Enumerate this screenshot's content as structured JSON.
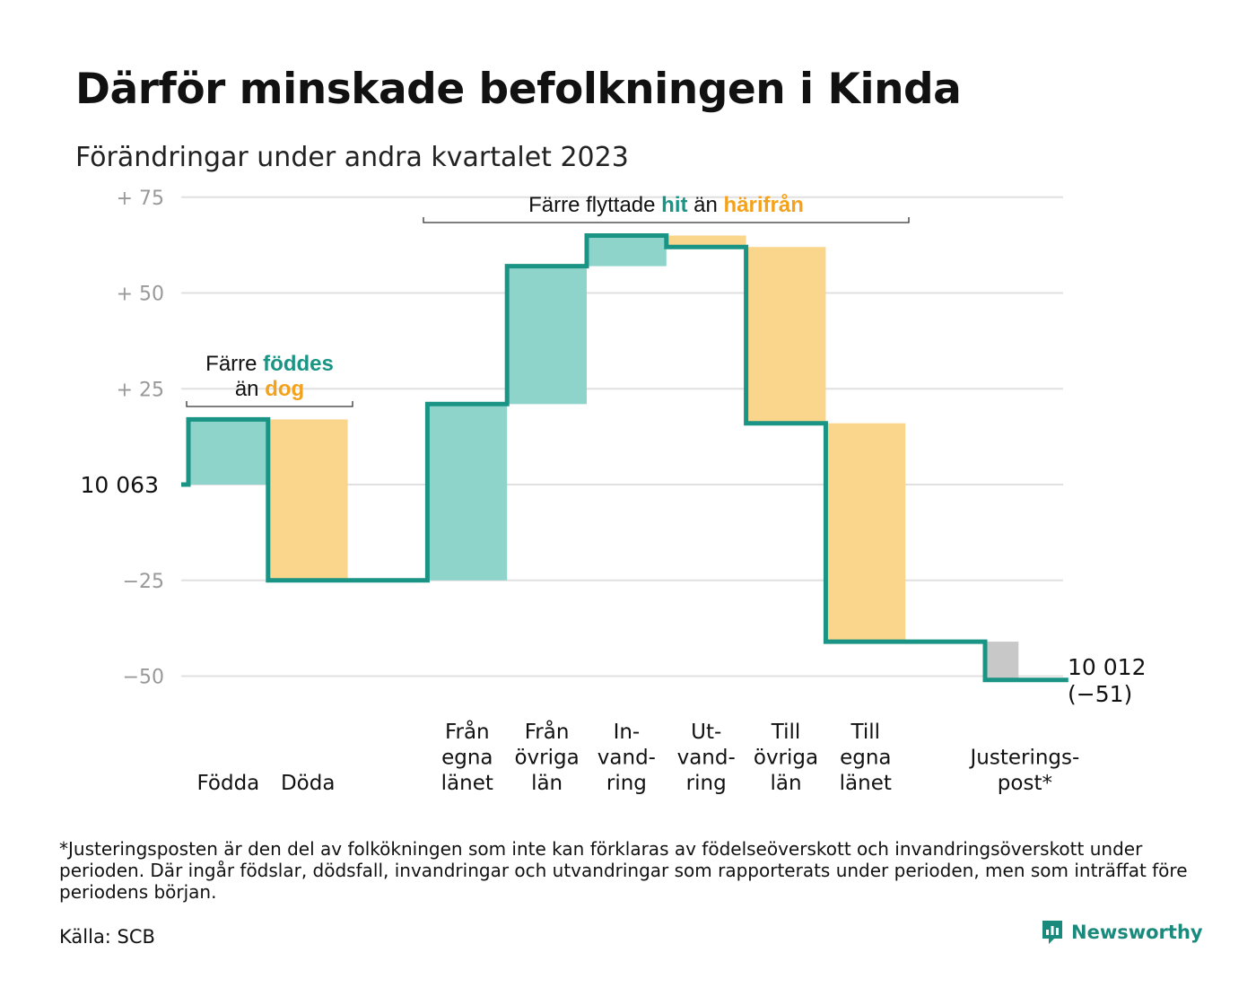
{
  "title": "Därför minskade befolkningen i Kinda",
  "subtitle": "Förändringar under andra kvartalet 2023",
  "footnote": "*Justeringsposten är den del av folkökningen som inte kan förklaras av födelseöverskott och invandringsöverskott under perioden. Där ingår födslar, dödsfall, invandringar och utvandringar som rapporterats under perioden, men som inträffat före periodens början.",
  "source": "Källa: SCB",
  "logo_text": "Newsworthy",
  "colors": {
    "increase": "#8fd4cb",
    "decrease": "#fad58c",
    "adjustment": "#c8c8c8",
    "line": "#1a9484",
    "teal_text": "#1a9484",
    "orange_text": "#f4a21c",
    "grid": "#e0e0e0"
  },
  "chart_data": {
    "type": "waterfall",
    "baseline": 10063,
    "baseline_label": "10  063",
    "y_ticks": [
      {
        "value": 75,
        "label": "+  75"
      },
      {
        "value": 50,
        "label": "+  50"
      },
      {
        "value": 25,
        "label": "+  25"
      },
      {
        "value": 0,
        "label": ""
      },
      {
        "value": -25,
        "label": "−25"
      },
      {
        "value": -50,
        "label": "−50"
      }
    ],
    "ylim": [
      -58,
      78
    ],
    "steps": [
      {
        "key": "fodda",
        "label": [
          "Födda"
        ],
        "change": 17,
        "kind": "increase"
      },
      {
        "key": "doda",
        "label": [
          "Döda"
        ],
        "change": -42,
        "kind": "decrease"
      },
      {
        "key": "gap",
        "label": [],
        "change": 0,
        "kind": "gap"
      },
      {
        "key": "fran-egna-lanet",
        "label": [
          "Från",
          "egna",
          "länet"
        ],
        "change": 46,
        "kind": "increase"
      },
      {
        "key": "fran-ovriga-lan",
        "label": [
          "Från",
          "övriga",
          "län"
        ],
        "change": 36,
        "kind": "increase"
      },
      {
        "key": "invandring",
        "label": [
          "In-",
          "vand-",
          "ring"
        ],
        "change": 8,
        "kind": "increase"
      },
      {
        "key": "utvandring",
        "label": [
          "Ut-",
          "vand-",
          "ring"
        ],
        "change": -3,
        "kind": "decrease"
      },
      {
        "key": "till-ovriga-lan",
        "label": [
          "Till",
          "övriga",
          "län"
        ],
        "change": -46,
        "kind": "decrease"
      },
      {
        "key": "till-egna-lanet",
        "label": [
          "Till",
          "egna",
          "länet"
        ],
        "change": -57,
        "kind": "decrease"
      },
      {
        "key": "gap2",
        "label": [],
        "change": 0,
        "kind": "gap"
      },
      {
        "key": "justeringspost",
        "label": [
          "Justerings-",
          "post*"
        ],
        "change": -10,
        "kind": "adjustment"
      }
    ],
    "end_label": [
      "10 012",
      "(−51)"
    ],
    "annotations": [
      {
        "key": "births",
        "lines": [
          [
            {
              "text": "Färre ",
              "color": "plain"
            },
            {
              "text": "föddes",
              "color": "teal"
            }
          ],
          [
            {
              "text": "än ",
              "color": "plain"
            },
            {
              "text": "dog",
              "color": "orange"
            }
          ]
        ],
        "span": [
          "fodda",
          "doda"
        ]
      },
      {
        "key": "moves",
        "lines": [
          [
            {
              "text": "Färre flyttade ",
              "color": "plain"
            },
            {
              "text": "hit",
              "color": "teal"
            },
            {
              "text": " än ",
              "color": "plain"
            },
            {
              "text": "härifrån",
              "color": "orange"
            }
          ]
        ],
        "span": [
          "fran-egna-lanet",
          "till-egna-lanet"
        ]
      }
    ]
  }
}
